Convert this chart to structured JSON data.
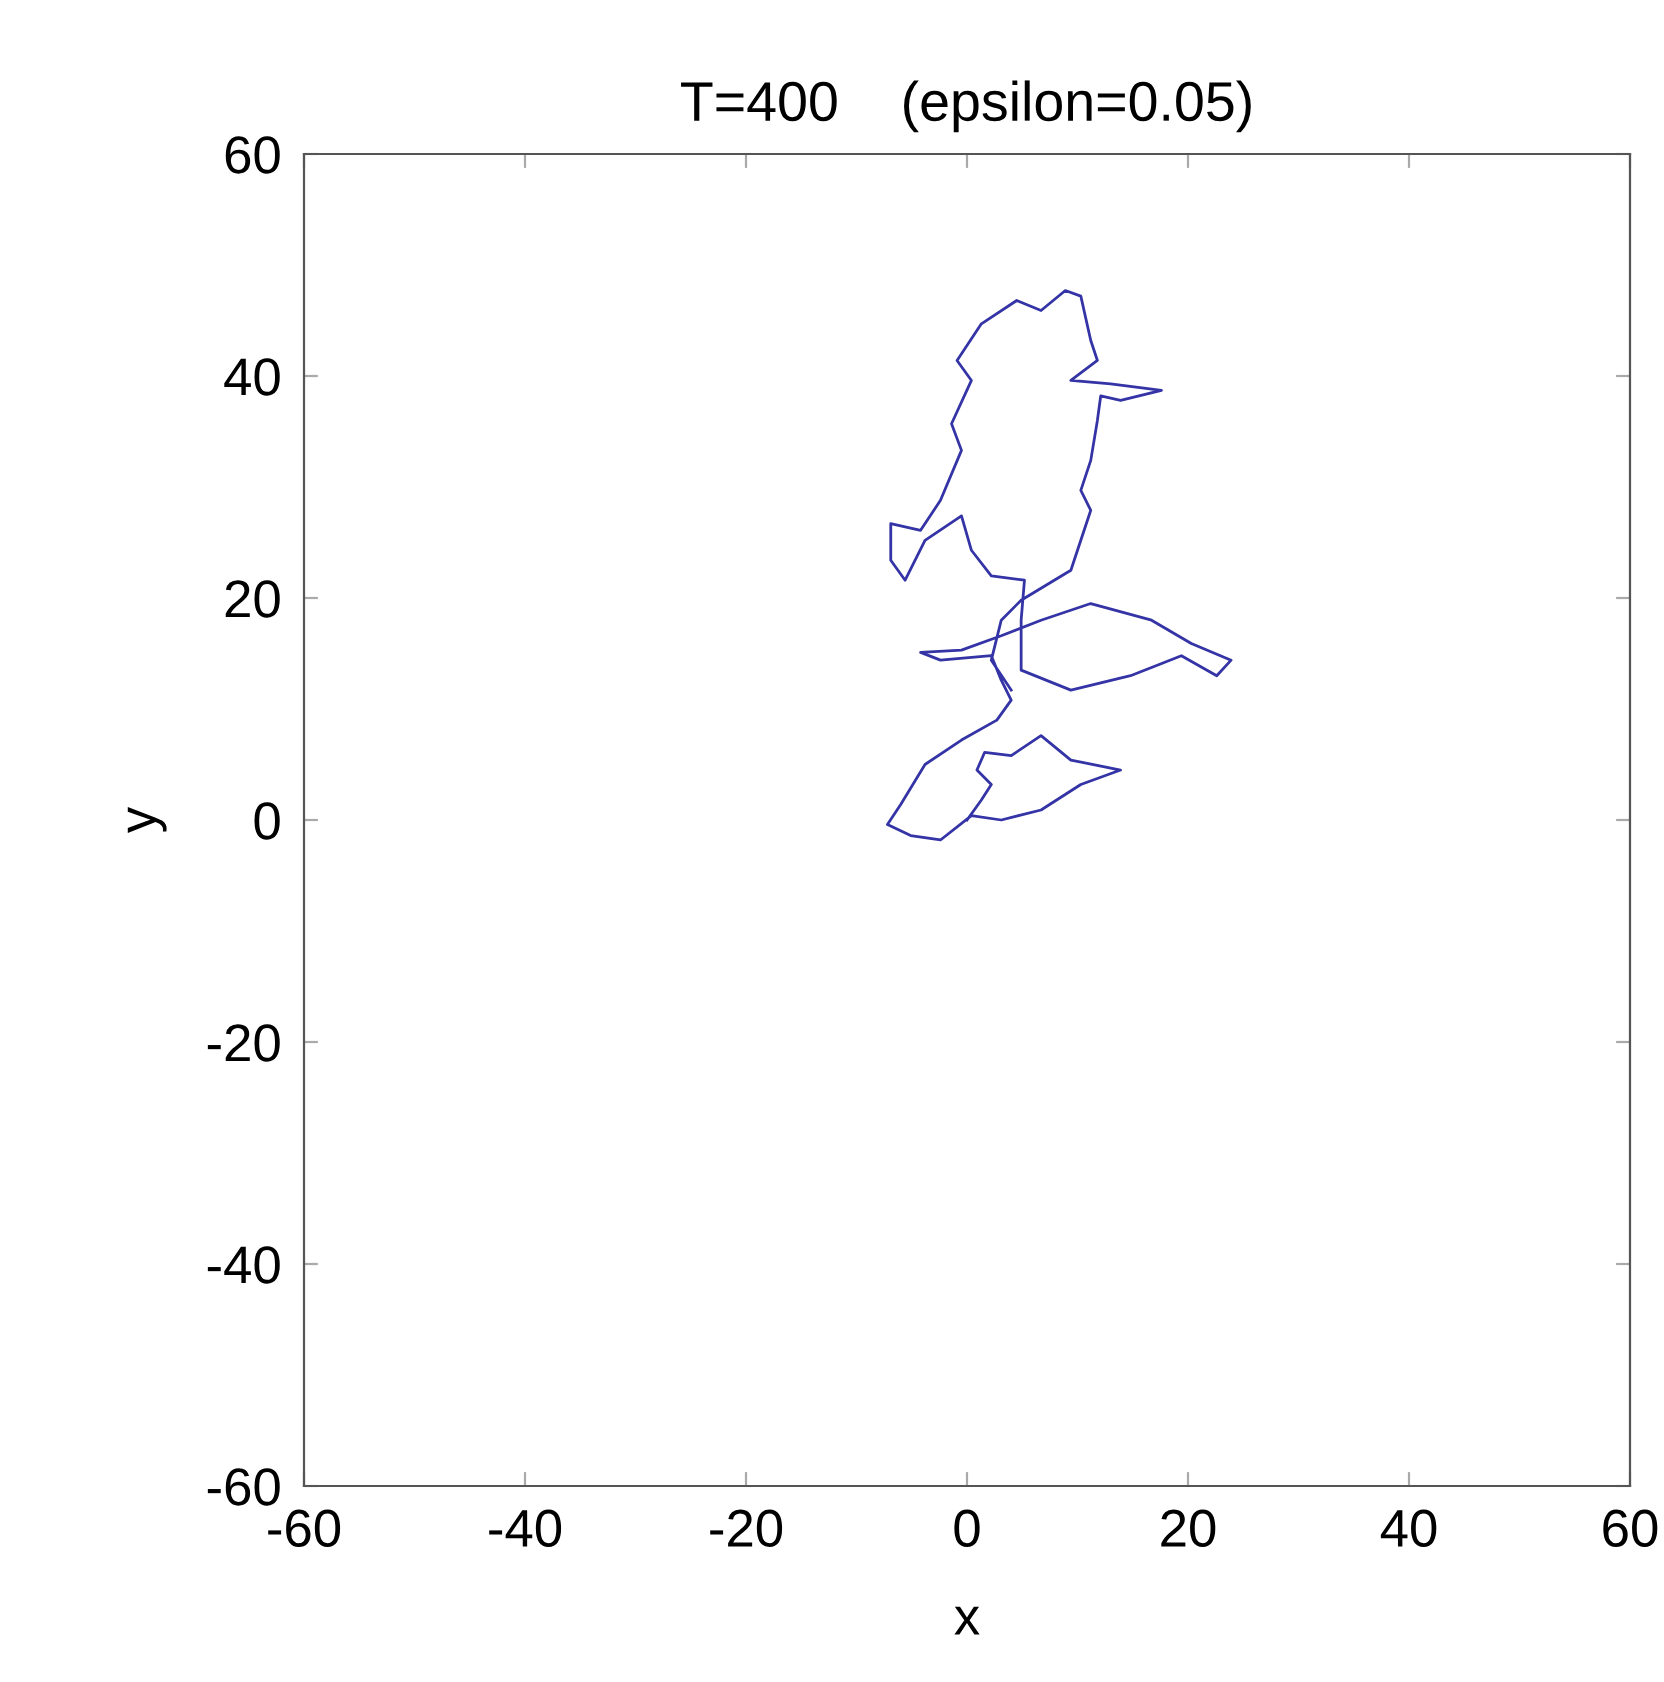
{
  "chart_data": {
    "type": "line",
    "title": "T=400    (epsilon=0.05)",
    "xlabel": "x",
    "ylabel": "y",
    "xlim": [
      -60,
      60
    ],
    "ylim": [
      -60,
      60
    ],
    "xticks": [
      -60,
      -40,
      -20,
      0,
      20,
      40,
      60
    ],
    "yticks": [
      -60,
      -40,
      -20,
      0,
      20,
      40,
      60
    ],
    "grid": false,
    "legend": false,
    "marker": "none",
    "line_style": "solid",
    "series": [
      {
        "color": "#3434a6",
        "x": [
          0,
          1.3,
          2.2,
          0.9,
          1.6,
          4.0,
          6.7,
          9.4,
          13.9,
          10.3,
          6.7,
          3.1,
          0.4,
          -2.4,
          -5.1,
          -7.2,
          -6.0,
          -3.8,
          -0.5,
          2.7,
          4.0,
          3.1,
          2.2,
          -2.4,
          -4.2,
          -0.5,
          3.1,
          6.7,
          11.2,
          16.7,
          20.3,
          23.9,
          22.6,
          19.4,
          14.8,
          9.4,
          4.9,
          4.9,
          5.2,
          2.2,
          0.4,
          -0.5,
          -3.8,
          -5.6,
          -6.9,
          -6.9,
          -4.2,
          -2.4,
          -0.5,
          -1.4,
          0.4,
          -0.9,
          1.3,
          4.5,
          6.7,
          8.9,
          10.3,
          11.2,
          11.8,
          9.4,
          13.0,
          17.6,
          13.9,
          12.1,
          11.8,
          11.2,
          10.3,
          11.2,
          9.4,
          4.9,
          3.1,
          2.2,
          4.0
        ],
        "values": [
          0,
          1.8,
          3.2,
          4.5,
          6.1,
          5.8,
          7.6,
          5.4,
          4.5,
          3.2,
          0.9,
          0,
          0.4,
          -1.8,
          -1.4,
          -0.4,
          1.4,
          5.0,
          7.2,
          9.0,
          10.8,
          12.6,
          14.8,
          14.4,
          15.1,
          15.3,
          16.6,
          18.0,
          19.5,
          18.0,
          15.9,
          14.4,
          13.0,
          14.8,
          13.0,
          11.7,
          13.5,
          18.0,
          21.6,
          22.0,
          24.3,
          27.4,
          25.2,
          21.6,
          23.4,
          26.7,
          26.1,
          28.8,
          33.3,
          35.7,
          39.6,
          41.4,
          44.7,
          46.8,
          45.9,
          47.7,
          47.2,
          43.2,
          41.4,
          39.6,
          39.3,
          38.7,
          37.8,
          38.2,
          36.0,
          32.4,
          29.7,
          27.9,
          22.5,
          19.8,
          18.0,
          14.4,
          11.7
        ]
      }
    ]
  }
}
